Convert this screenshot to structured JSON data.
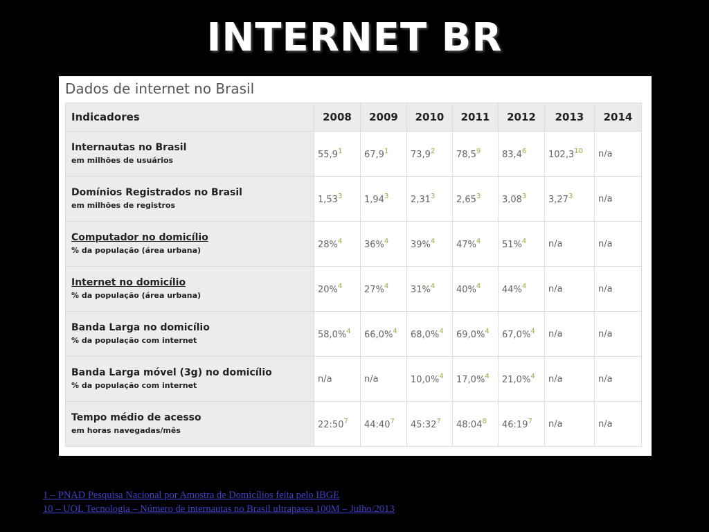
{
  "slide": {
    "title": "INTERNET BR"
  },
  "panel": {
    "caption": "Dados de internet no Brasil"
  },
  "table": {
    "headers": [
      "Indicadores",
      "2008",
      "2009",
      "2010",
      "2011",
      "2012",
      "2013",
      "2014"
    ],
    "rows": [
      {
        "title": "Internautas no Brasil",
        "subtitle": "em milhões de usuários",
        "link": false,
        "cells": [
          {
            "v": "55,9",
            "n": "1"
          },
          {
            "v": "67,9",
            "n": "1"
          },
          {
            "v": "73,9",
            "n": "2"
          },
          {
            "v": "78,5",
            "n": "9"
          },
          {
            "v": "83,4",
            "n": "6"
          },
          {
            "v": "102,3",
            "n": "10"
          },
          {
            "v": "n/a",
            "n": ""
          }
        ]
      },
      {
        "title": "Domínios Registrados no Brasil",
        "subtitle": "em milhões de registros",
        "link": false,
        "cells": [
          {
            "v": "1,53",
            "n": "3"
          },
          {
            "v": "1,94",
            "n": "3"
          },
          {
            "v": "2,31",
            "n": "3"
          },
          {
            "v": "2,65",
            "n": "3"
          },
          {
            "v": "3,08",
            "n": "3"
          },
          {
            "v": "3,27",
            "n": "3"
          },
          {
            "v": "n/a",
            "n": ""
          }
        ]
      },
      {
        "title": "Computador no domicílio",
        "subtitle": "% da população (área urbana)",
        "link": true,
        "cells": [
          {
            "v": "28%",
            "n": "4"
          },
          {
            "v": "36%",
            "n": "4"
          },
          {
            "v": "39%",
            "n": "4"
          },
          {
            "v": "47%",
            "n": "4"
          },
          {
            "v": "51%",
            "n": "4"
          },
          {
            "v": "n/a",
            "n": ""
          },
          {
            "v": "n/a",
            "n": ""
          }
        ]
      },
      {
        "title": "Internet no domicílio",
        "subtitle": "% da população (área urbana)",
        "link": true,
        "cells": [
          {
            "v": "20%",
            "n": "4"
          },
          {
            "v": "27%",
            "n": "4"
          },
          {
            "v": "31%",
            "n": "4"
          },
          {
            "v": "40%",
            "n": "4"
          },
          {
            "v": "44%",
            "n": "4"
          },
          {
            "v": "n/a",
            "n": ""
          },
          {
            "v": "n/a",
            "n": ""
          }
        ]
      },
      {
        "title": "Banda Larga no domicílio",
        "subtitle": "% da população com internet",
        "link": false,
        "cells": [
          {
            "v": "58,0%",
            "n": "4"
          },
          {
            "v": "66,0%",
            "n": "4"
          },
          {
            "v": "68,0%",
            "n": "4"
          },
          {
            "v": "69,0%",
            "n": "4"
          },
          {
            "v": "67,0%",
            "n": "4"
          },
          {
            "v": "n/a",
            "n": ""
          },
          {
            "v": "n/a",
            "n": ""
          }
        ]
      },
      {
        "title": "Banda Larga móvel (3g) no domicílio",
        "subtitle": "% da população com internet",
        "link": false,
        "cells": [
          {
            "v": "n/a",
            "n": ""
          },
          {
            "v": "n/a",
            "n": ""
          },
          {
            "v": "10,0%",
            "n": "4"
          },
          {
            "v": "17,0%",
            "n": "4"
          },
          {
            "v": "21,0%",
            "n": "4"
          },
          {
            "v": "n/a",
            "n": ""
          },
          {
            "v": "n/a",
            "n": ""
          }
        ]
      },
      {
        "title": "Tempo médio de acesso",
        "subtitle": "em horas navegadas/mês",
        "link": false,
        "cells": [
          {
            "v": "22:50",
            "n": "7"
          },
          {
            "v": "44:40",
            "n": "7"
          },
          {
            "v": "45:32",
            "n": "7"
          },
          {
            "v": "48:04",
            "n": "8"
          },
          {
            "v": "46:19",
            "n": "7"
          },
          {
            "v": "n/a",
            "n": ""
          },
          {
            "v": "n/a",
            "n": ""
          }
        ]
      }
    ]
  },
  "footnotes": [
    "1 – PNAD Pesquisa Nacional por Amostra de Domicílios feita pelo IBGE",
    "10 – UOL Tecnologia – Número de internautas no Brasil ultrapassa 100M – Julho/2013"
  ],
  "colors": {
    "background": "#000000",
    "title": "#ffffff",
    "footnote_sup": "#8fb13e",
    "link": "#4040c8"
  }
}
